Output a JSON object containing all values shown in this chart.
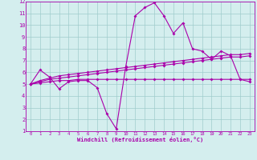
{
  "xlabel": "Windchill (Refroidissement éolien,°C)",
  "xlim": [
    -0.5,
    23.5
  ],
  "ylim": [
    1,
    12
  ],
  "xticks": [
    0,
    1,
    2,
    3,
    4,
    5,
    6,
    7,
    8,
    9,
    10,
    11,
    12,
    13,
    14,
    15,
    16,
    17,
    18,
    19,
    20,
    21,
    22,
    23
  ],
  "yticks": [
    1,
    2,
    3,
    4,
    5,
    6,
    7,
    8,
    9,
    10,
    11,
    12
  ],
  "bg_color": "#d4eeee",
  "line_color": "#aa00aa",
  "grid_color": "#a0cccc",
  "line1": [
    5.0,
    6.2,
    5.6,
    4.6,
    5.2,
    5.3,
    5.3,
    4.7,
    2.5,
    1.2,
    6.5,
    10.8,
    11.5,
    11.9,
    10.8,
    9.3,
    10.2,
    8.0,
    7.8,
    7.1,
    7.8,
    7.4,
    5.4,
    5.2
  ],
  "line2": [
    5.0,
    5.3,
    5.5,
    5.7,
    5.8,
    5.9,
    6.0,
    6.1,
    6.2,
    6.3,
    6.4,
    6.5,
    6.6,
    6.7,
    6.8,
    6.9,
    7.0,
    7.1,
    7.2,
    7.3,
    7.4,
    7.5,
    7.5,
    7.6
  ],
  "line3": [
    5.0,
    5.2,
    5.4,
    5.5,
    5.6,
    5.7,
    5.8,
    5.9,
    6.0,
    6.1,
    6.2,
    6.3,
    6.4,
    6.5,
    6.6,
    6.7,
    6.8,
    6.9,
    7.0,
    7.1,
    7.2,
    7.3,
    7.3,
    7.4
  ],
  "line4": [
    5.0,
    5.1,
    5.2,
    5.3,
    5.3,
    5.4,
    5.4,
    5.4,
    5.4,
    5.4,
    5.4,
    5.4,
    5.4,
    5.4,
    5.4,
    5.4,
    5.4,
    5.4,
    5.4,
    5.4,
    5.4,
    5.4,
    5.4,
    5.4
  ]
}
